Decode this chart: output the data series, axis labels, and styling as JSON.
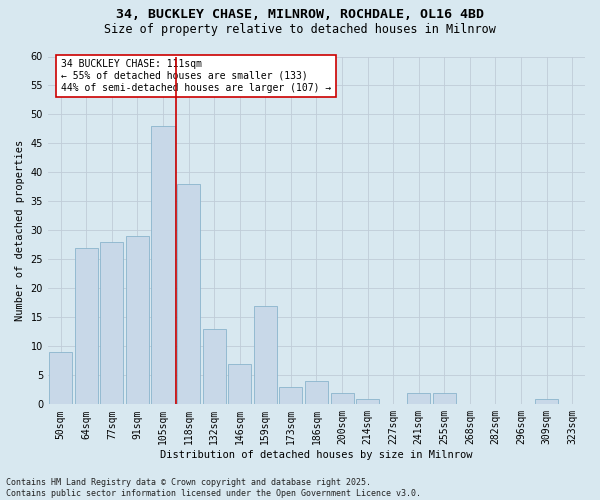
{
  "title_line1": "34, BUCKLEY CHASE, MILNROW, ROCHDALE, OL16 4BD",
  "title_line2": "Size of property relative to detached houses in Milnrow",
  "xlabel": "Distribution of detached houses by size in Milnrow",
  "ylabel": "Number of detached properties",
  "categories": [
    "50sqm",
    "64sqm",
    "77sqm",
    "91sqm",
    "105sqm",
    "118sqm",
    "132sqm",
    "146sqm",
    "159sqm",
    "173sqm",
    "186sqm",
    "200sqm",
    "214sqm",
    "227sqm",
    "241sqm",
    "255sqm",
    "268sqm",
    "282sqm",
    "296sqm",
    "309sqm",
    "323sqm"
  ],
  "values": [
    9,
    27,
    28,
    29,
    48,
    38,
    13,
    7,
    17,
    3,
    4,
    2,
    1,
    0,
    2,
    2,
    0,
    0,
    0,
    1,
    0
  ],
  "bar_color": "#c8d8e8",
  "bar_edge_color": "#8ab4cc",
  "vline_x_index": 4,
  "vline_color": "#cc0000",
  "annotation_text": "34 BUCKLEY CHASE: 111sqm\n← 55% of detached houses are smaller (133)\n44% of semi-detached houses are larger (107) →",
  "annotation_box_facecolor": "#ffffff",
  "annotation_box_edgecolor": "#cc0000",
  "ylim": [
    0,
    60
  ],
  "yticks": [
    0,
    5,
    10,
    15,
    20,
    25,
    30,
    35,
    40,
    45,
    50,
    55,
    60
  ],
  "grid_color": "#c0ccd8",
  "background_color": "#d8e8f0",
  "footer_text": "Contains HM Land Registry data © Crown copyright and database right 2025.\nContains public sector information licensed under the Open Government Licence v3.0.",
  "title_fontsize": 9.5,
  "subtitle_fontsize": 8.5,
  "axis_label_fontsize": 7.5,
  "tick_fontsize": 7,
  "annotation_fontsize": 7,
  "footer_fontsize": 6
}
